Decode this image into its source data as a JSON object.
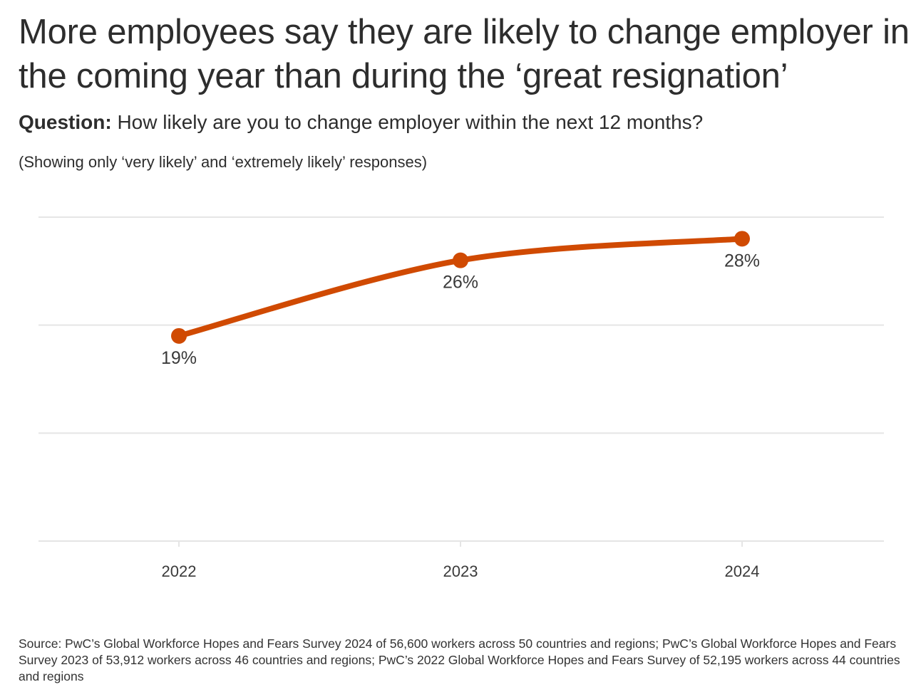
{
  "title": "More employees say they are likely to change employer in the coming year than during the ‘great resignation’",
  "question": {
    "label": "Question:",
    "text": "How likely are you to change employer within the next 12 months?"
  },
  "note": "(Showing only ‘very likely’ and ‘extremely likely’ responses)",
  "colors": {
    "line": "#d04a02",
    "grid": "#e5e5e5",
    "text": "#2d2d2d"
  },
  "chart_data": {
    "type": "line",
    "x": [
      "2022",
      "2023",
      "2024"
    ],
    "series": [
      {
        "values": [
          19,
          26,
          28
        ],
        "labels": [
          "19%",
          "26%",
          "28%"
        ]
      }
    ],
    "ylim": [
      0,
      30
    ],
    "grid": true,
    "xlabel": "",
    "ylabel": ""
  },
  "source": "Source: PwC’s Global Workforce Hopes and Fears Survey 2024 of 56,600 workers across 50 countries and regions; PwC’s Global Workforce Hopes and Fears Survey 2023 of 53,912 workers across 46 countries and regions; PwC’s 2022 Global Workforce Hopes and Fears Survey of 52,195 workers across 44 countries and regions"
}
